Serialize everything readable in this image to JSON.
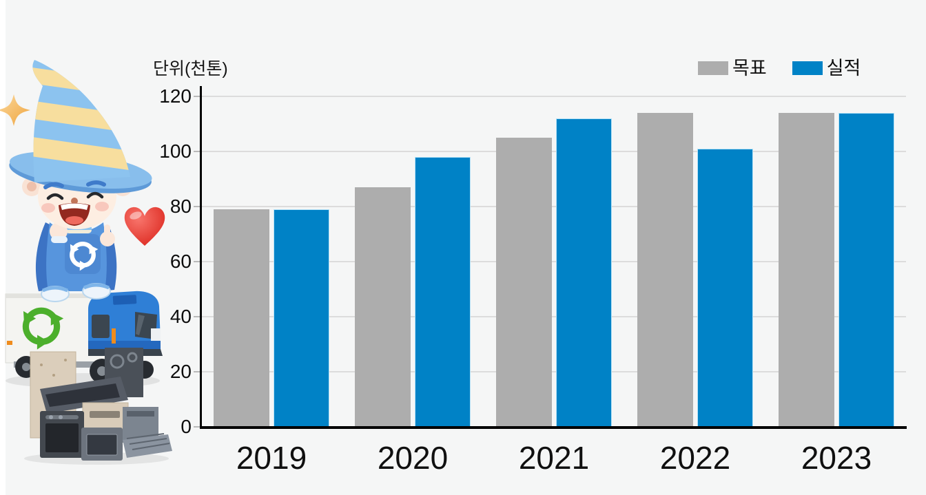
{
  "page": {
    "background_color": "#f5f6f6",
    "unit_label": "단위(천톤)"
  },
  "chart_data": {
    "type": "bar",
    "categories": [
      "2019",
      "2020",
      "2021",
      "2022",
      "2023"
    ],
    "series": [
      {
        "key": "target",
        "name": "목표",
        "color": "#adadad",
        "values": [
          79,
          87,
          105,
          114,
          114
        ]
      },
      {
        "key": "actual",
        "name": "실적",
        "color": "#0082c6",
        "edge_color": "#b5e2f7",
        "values": [
          79,
          98,
          112,
          101,
          114
        ]
      }
    ],
    "title": "",
    "xlabel": "",
    "ylabel": "단위(천톤)",
    "ylim": [
      0,
      120
    ],
    "yticks": [
      0,
      20,
      40,
      60,
      80,
      100,
      120
    ],
    "grid": true,
    "legend_position": "top-right",
    "axis_color": "#000000",
    "gridline_color": "#dcdcdc"
  },
  "mascot": {
    "parts": [
      "sparkle-star-icon",
      "recycling-wizard-kid",
      "heart-icon",
      "recycling-truck",
      "used-appliance-pile"
    ]
  }
}
